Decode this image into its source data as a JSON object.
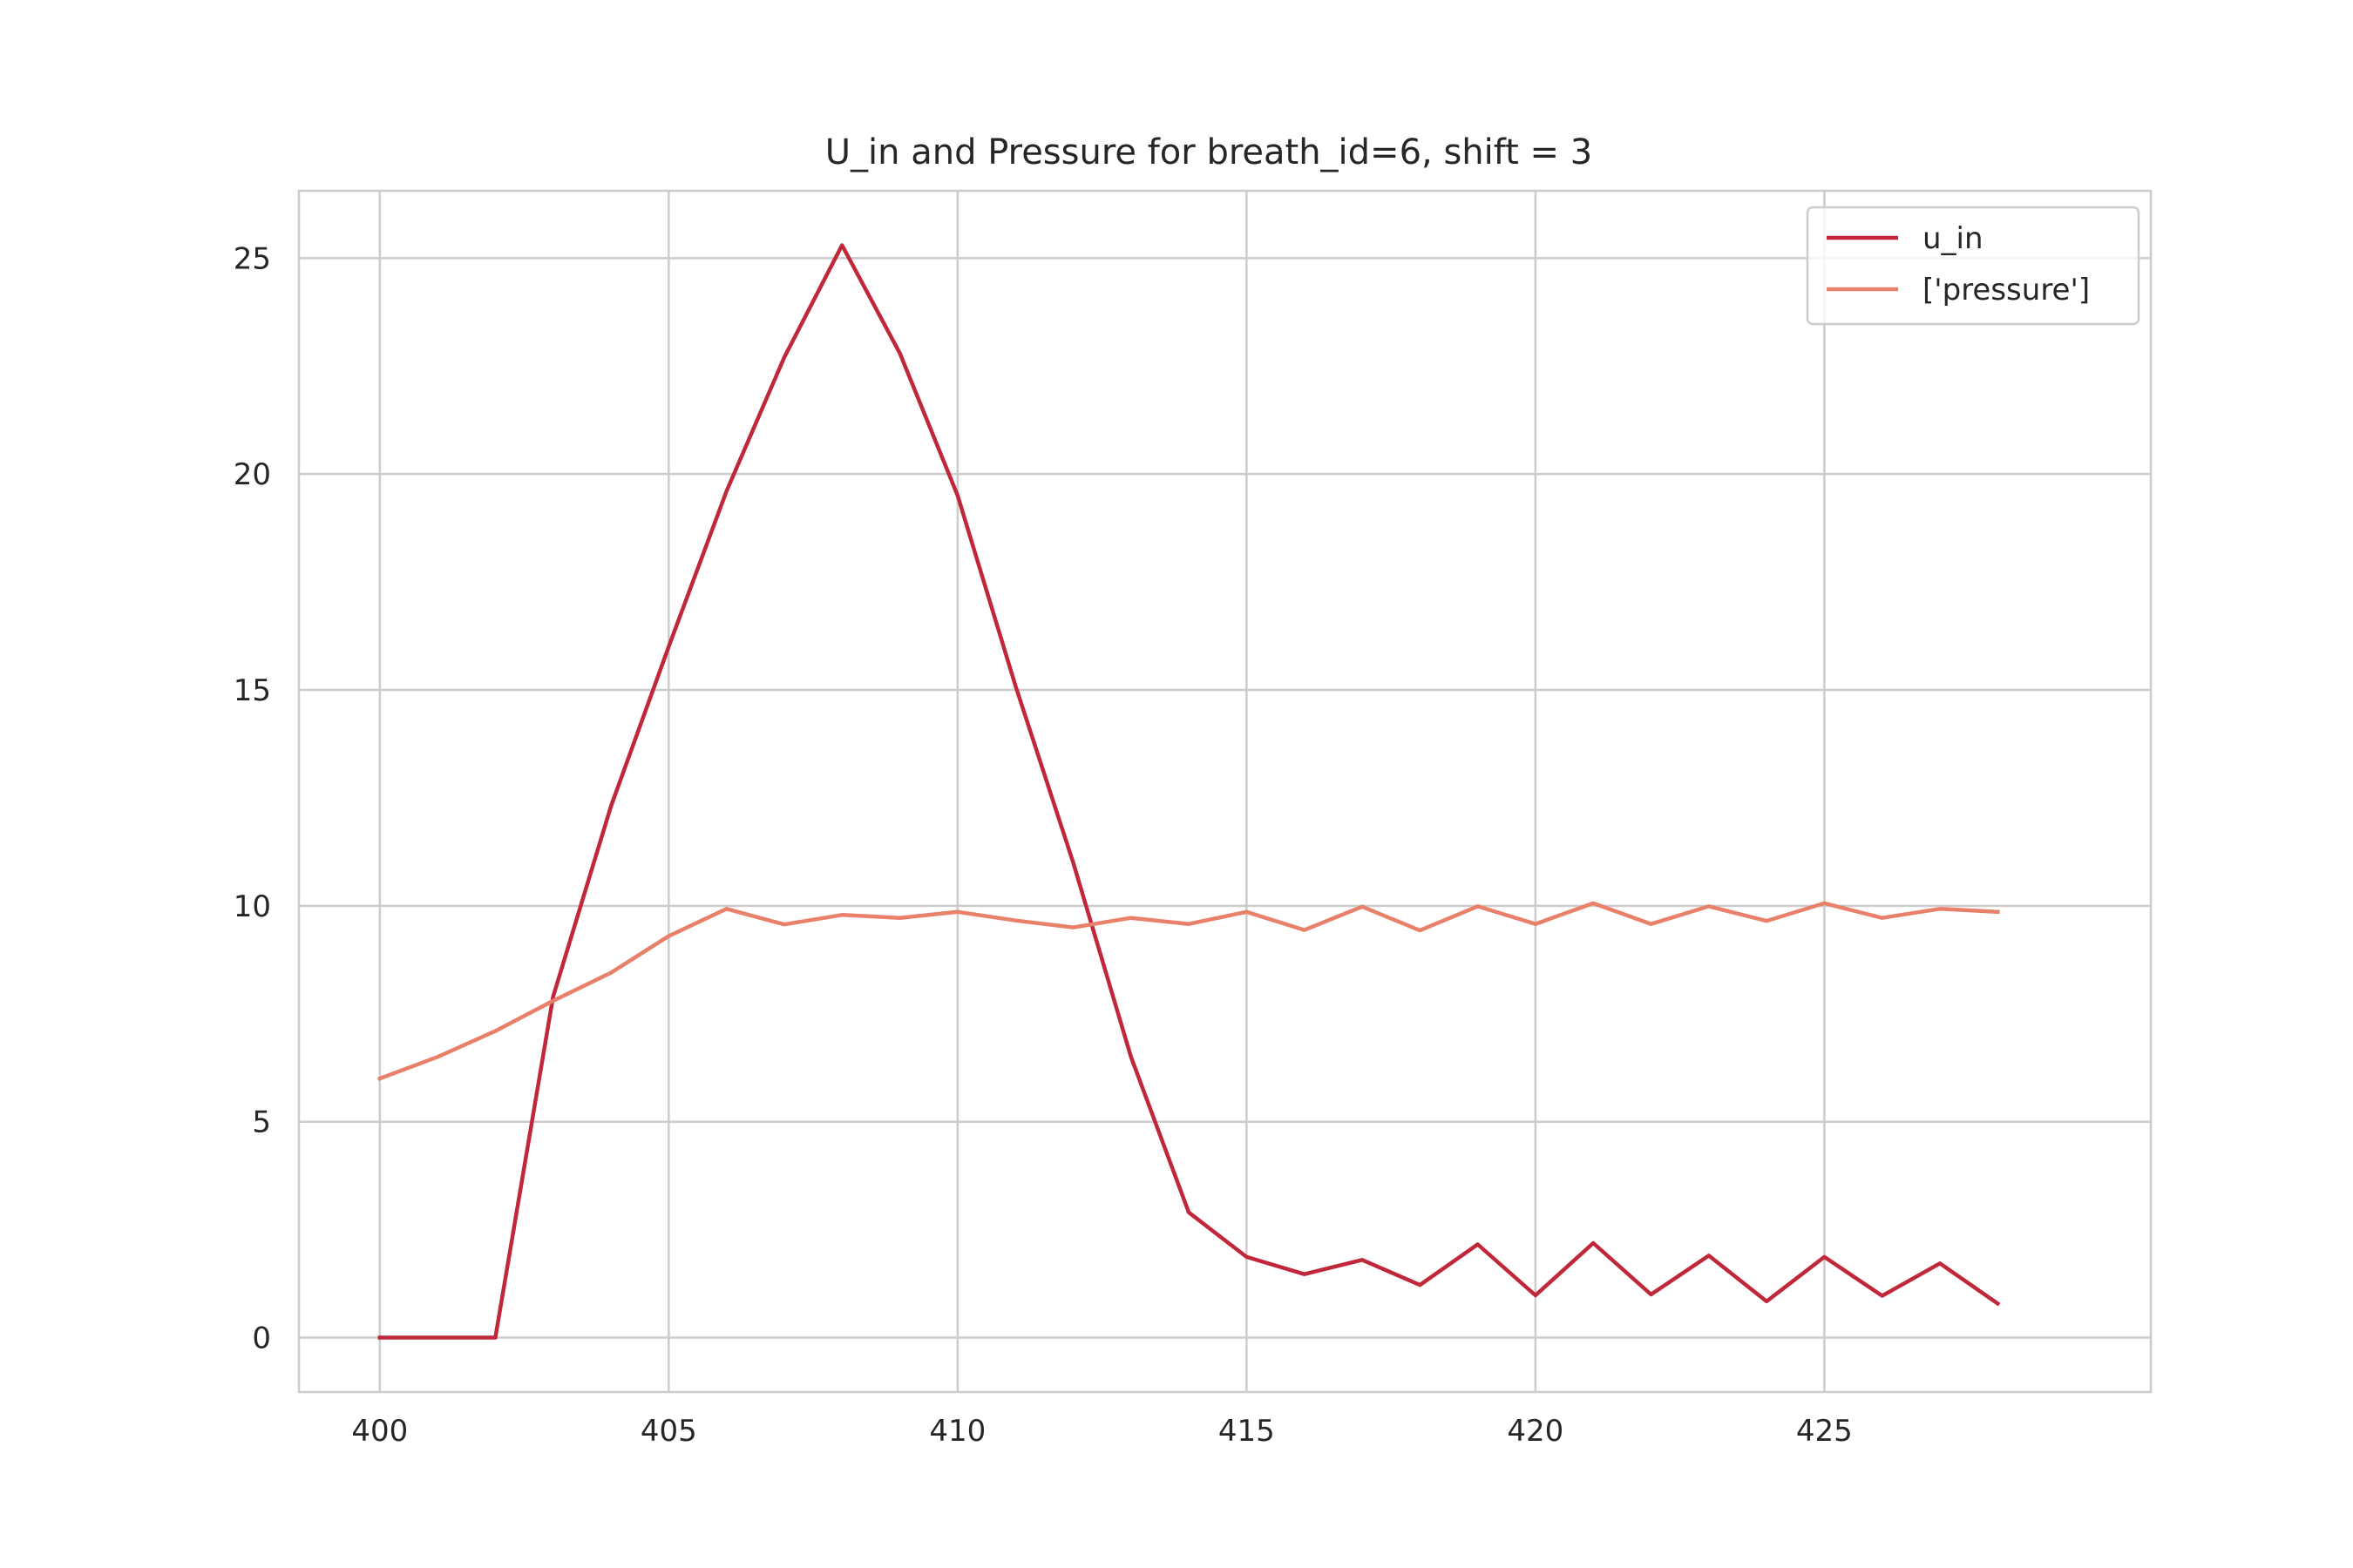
{
  "chart_data": {
    "type": "line",
    "title": "U_in and Pressure for breath_id=6, shift = 3",
    "xlabel": "",
    "ylabel": "",
    "xlim": [
      398.6,
      430.65
    ],
    "ylim": [
      -1.26,
      26.56
    ],
    "xticks": [
      400,
      405,
      410,
      415,
      420,
      425
    ],
    "yticks": [
      0,
      5,
      10,
      15,
      20,
      25
    ],
    "grid": true,
    "legend_position": "top-right",
    "x": [
      400,
      401,
      402,
      403,
      404,
      405,
      406,
      407,
      408,
      409,
      410,
      411,
      412,
      413,
      414,
      415,
      416,
      417,
      418,
      419,
      420,
      421,
      422,
      423,
      424,
      425,
      426,
      427,
      428
    ],
    "series": [
      {
        "name": "u_in",
        "color": "#c0283a",
        "values": [
          0.0,
          0.0,
          0.0,
          7.9,
          12.3,
          16.0,
          19.6,
          22.7,
          25.3,
          22.8,
          19.5,
          15.1,
          11.0,
          6.5,
          2.9,
          1.87,
          1.47,
          1.8,
          1.22,
          2.16,
          0.98,
          2.19,
          1.0,
          1.9,
          0.84,
          1.87,
          0.97,
          1.72,
          0.79
        ]
      },
      {
        "name": "['pressure']",
        "color": "#e8806a",
        "values": [
          6.0,
          6.5,
          7.1,
          7.8,
          8.45,
          9.3,
          9.93,
          9.57,
          9.79,
          9.72,
          9.86,
          9.66,
          9.5,
          9.72,
          9.58,
          9.86,
          9.44,
          9.98,
          9.43,
          9.99,
          9.58,
          10.06,
          9.58,
          9.99,
          9.65,
          10.06,
          9.72,
          9.93,
          9.86
        ]
      }
    ]
  }
}
